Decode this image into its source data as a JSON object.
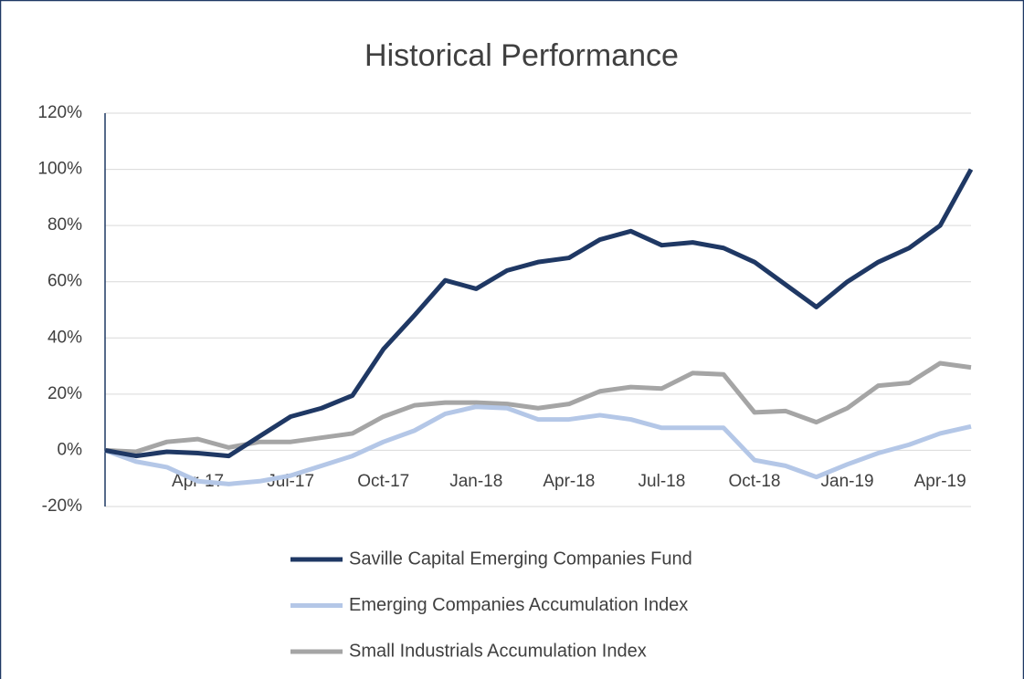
{
  "chart_data": {
    "type": "line",
    "title": "Historical Performance",
    "categories": [
      null,
      null,
      null,
      "Apr-17",
      null,
      null,
      "Jul-17",
      null,
      null,
      "Oct-17",
      null,
      null,
      "Jan-18",
      null,
      null,
      "Apr-18",
      null,
      null,
      "Jul-18",
      null,
      null,
      "Oct-18",
      null,
      null,
      "Jan-19",
      null,
      null,
      "Apr-19",
      null
    ],
    "series": [
      {
        "name": "Saville Capital Emerging Companies Fund",
        "color": "#1f3864",
        "values": [
          0,
          -2,
          -0.5,
          -1,
          -2,
          5,
          12,
          15,
          19.5,
          36,
          48,
          60.5,
          57.5,
          64,
          67,
          68.5,
          75,
          78,
          73,
          74,
          72,
          67,
          59,
          51,
          60,
          67,
          72,
          80,
          100
        ]
      },
      {
        "name": "Emerging Companies Accumulation Index",
        "color": "#b4c7e7",
        "values": [
          0,
          -4,
          -6,
          -11,
          -12,
          -11,
          -9,
          -5.5,
          -2,
          3,
          7,
          13,
          15.5,
          15,
          11,
          11,
          12.5,
          11,
          8,
          8,
          8,
          -3.5,
          -5.5,
          -9.5,
          -5,
          -1,
          2,
          6,
          8.5
        ]
      },
      {
        "name": "Small Industrials Accumulation Index",
        "color": "#a5a5a5",
        "values": [
          0,
          -0.5,
          3,
          4,
          1,
          3,
          3,
          4.5,
          6,
          12,
          16,
          17,
          17,
          16.5,
          15,
          16.5,
          21,
          22.5,
          22,
          27.5,
          27,
          13.5,
          14,
          10,
          15,
          23,
          24,
          31,
          29.5
        ]
      }
    ],
    "ylim": [
      -20,
      120
    ],
    "yticks": [
      {
        "value": -20,
        "label": "-20%"
      },
      {
        "value": 0,
        "label": "0%"
      },
      {
        "value": 20,
        "label": "20%"
      },
      {
        "value": 40,
        "label": "40%"
      },
      {
        "value": 60,
        "label": "60%"
      },
      {
        "value": 80,
        "label": "80%"
      },
      {
        "value": 100,
        "label": "100%"
      },
      {
        "value": 120,
        "label": "120%"
      }
    ],
    "grid": true
  }
}
